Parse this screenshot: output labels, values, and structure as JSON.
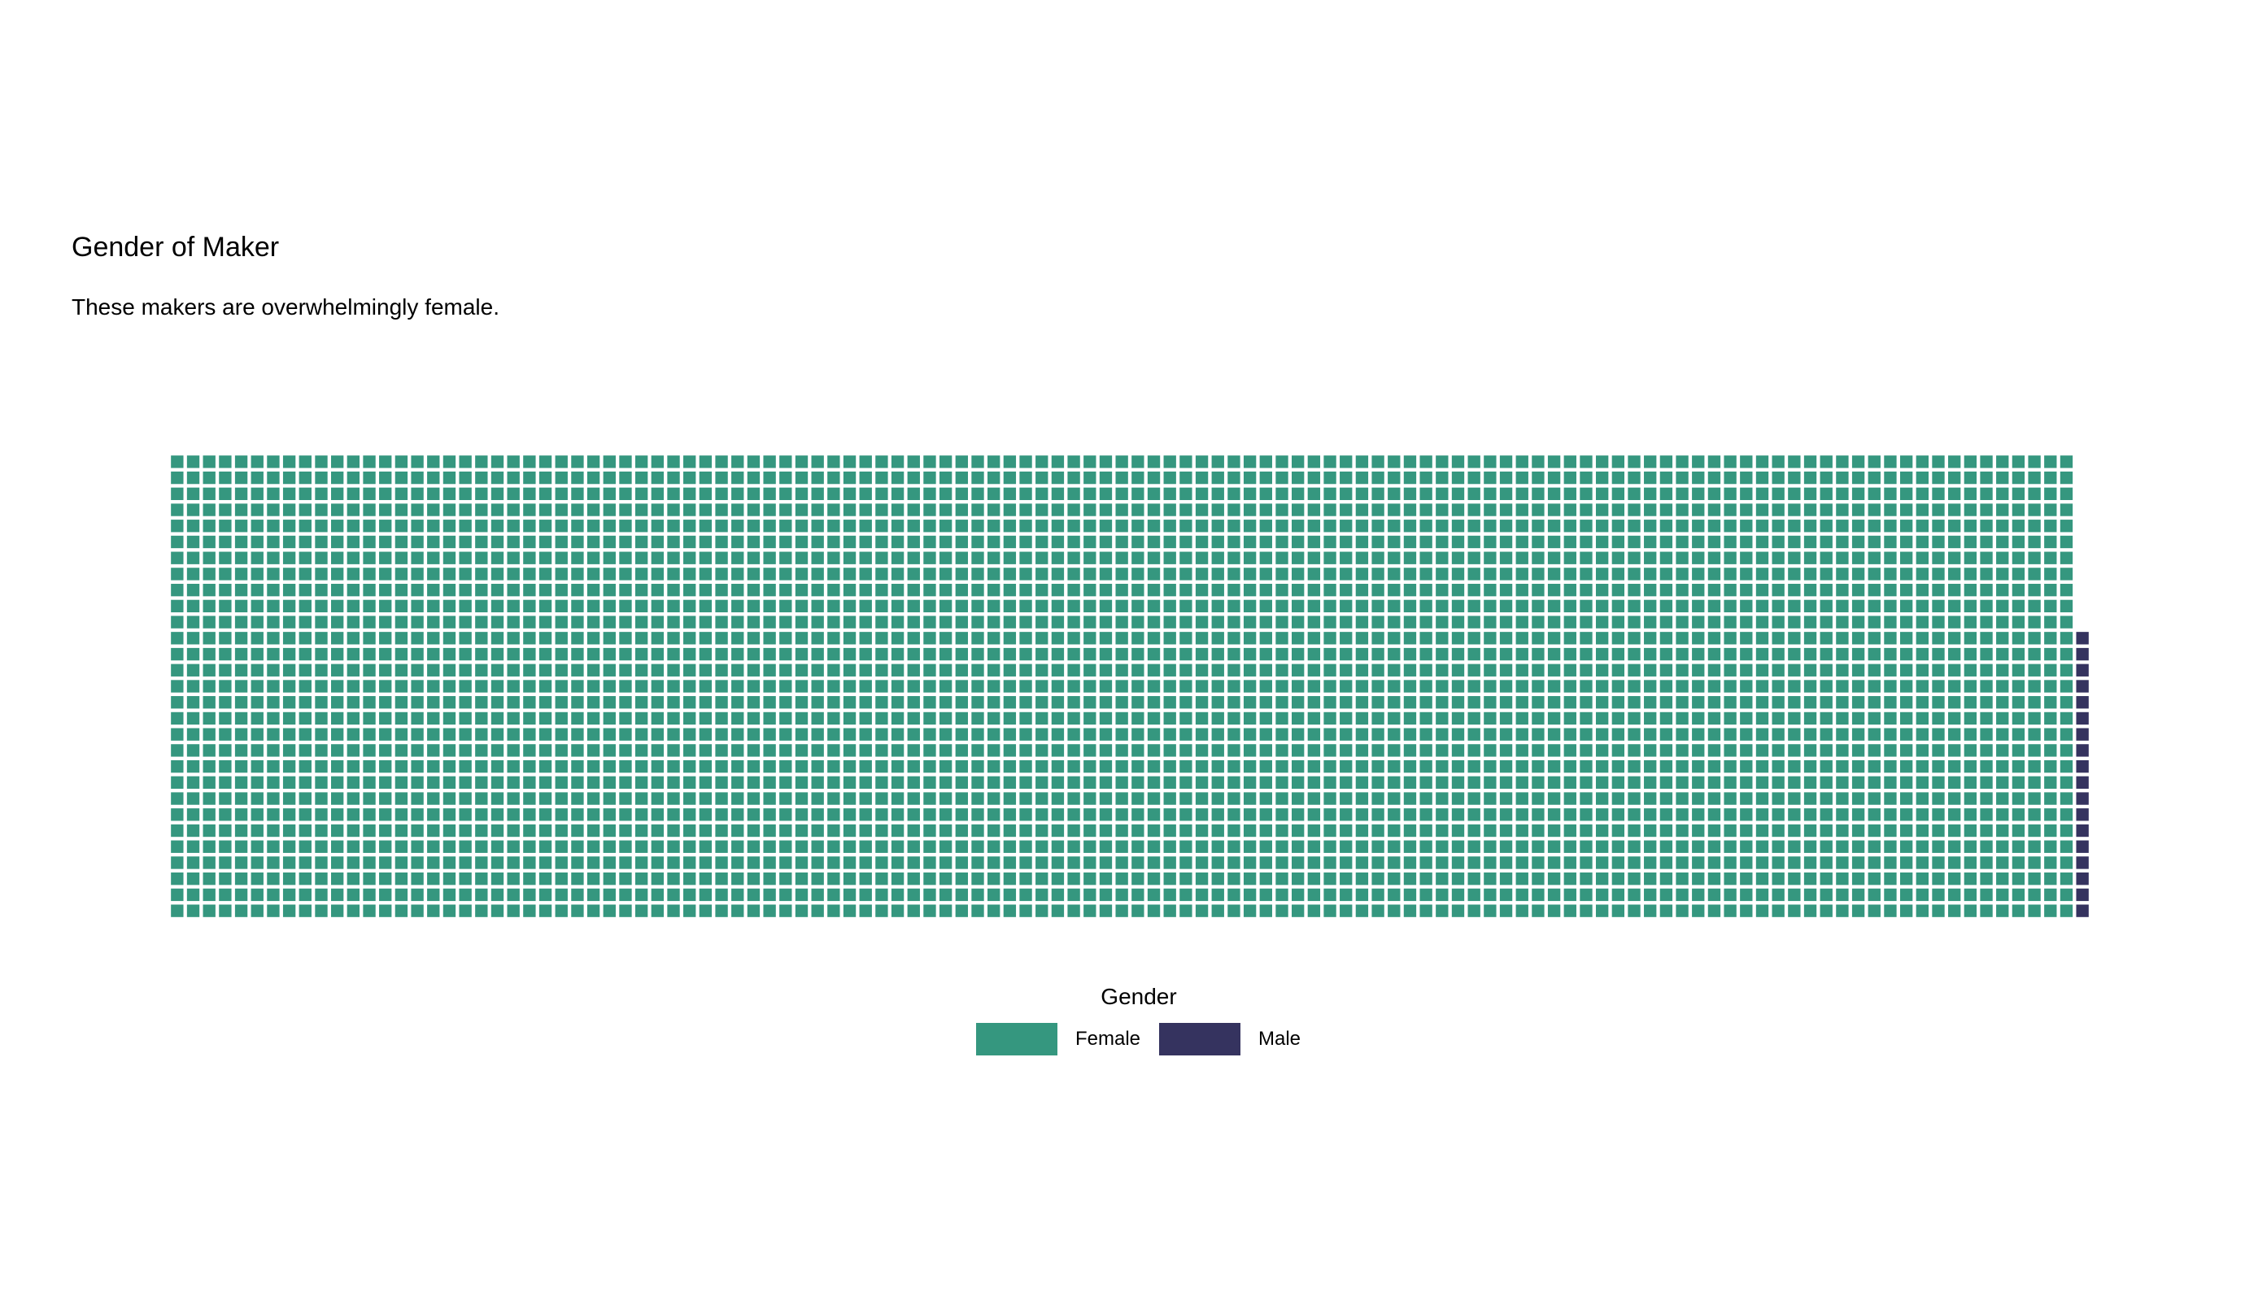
{
  "title": "Gender of Maker",
  "subtitle": "These makers are overwhelmingly female.",
  "chart_data": {
    "type": "waffle",
    "rows": 29,
    "fill_order": "column-major, bottom-to-top, left-to-right",
    "series": [
      {
        "name": "Female",
        "value": 3451,
        "color": "#35977F"
      },
      {
        "name": "Male",
        "value": 18,
        "color": "#35335F"
      }
    ],
    "legend": {
      "title": "Gender",
      "position": "bottom"
    }
  }
}
